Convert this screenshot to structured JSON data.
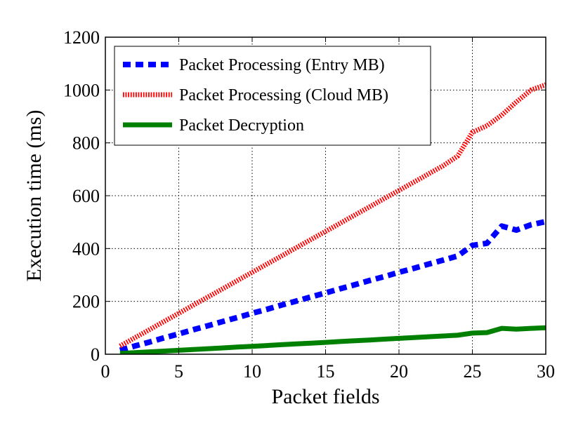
{
  "chart_data": {
    "type": "line",
    "title": "",
    "xlabel": "Packet fields",
    "ylabel": "Execution time (ms)",
    "xlim": [
      0,
      30
    ],
    "ylim": [
      0,
      1200
    ],
    "xticks": [
      "0",
      "5",
      "10",
      "15",
      "20",
      "25",
      "30"
    ],
    "yticks": [
      "0",
      "200",
      "400",
      "600",
      "800",
      "1000",
      "1200"
    ],
    "grid": true,
    "legend_position": "top-left",
    "series": [
      {
        "name": "Packet Processing (Entry MB)",
        "color": "#0000ff",
        "style": "dashed",
        "x": [
          1,
          2,
          3,
          4,
          5,
          6,
          7,
          8,
          9,
          10,
          11,
          12,
          13,
          14,
          15,
          16,
          17,
          18,
          19,
          20,
          21,
          22,
          23,
          24,
          25,
          26,
          27,
          28,
          29,
          30
        ],
        "y": [
          15,
          31,
          46,
          62,
          77,
          93,
          108,
          124,
          139,
          155,
          170,
          186,
          201,
          217,
          232,
          248,
          263,
          279,
          294,
          310,
          325,
          341,
          356,
          372,
          412,
          420,
          485,
          470,
          490,
          502
        ]
      },
      {
        "name": "Packet Processing (Cloud MB)",
        "color": "#ff0000",
        "style": "dotted",
        "x": [
          1,
          2,
          3,
          4,
          5,
          6,
          7,
          8,
          9,
          10,
          11,
          12,
          13,
          14,
          15,
          16,
          17,
          18,
          19,
          20,
          21,
          22,
          23,
          24,
          25,
          26,
          27,
          28,
          29,
          30
        ],
        "y": [
          31,
          62,
          93,
          124,
          155,
          186,
          217,
          248,
          279,
          310,
          341,
          372,
          403,
          434,
          465,
          496,
          527,
          558,
          589,
          620,
          651,
          682,
          713,
          750,
          840,
          865,
          905,
          955,
          1000,
          1020
        ]
      },
      {
        "name": "Packet Decryption",
        "color": "#008000",
        "style": "solid",
        "x": [
          1,
          2,
          3,
          4,
          5,
          6,
          7,
          8,
          9,
          10,
          11,
          12,
          13,
          14,
          15,
          16,
          17,
          18,
          19,
          20,
          21,
          22,
          23,
          24,
          25,
          26,
          27,
          28,
          29,
          30
        ],
        "y": [
          3,
          6,
          9,
          12,
          15,
          18,
          21,
          24,
          27,
          30,
          33,
          36,
          39,
          42,
          45,
          48,
          51,
          54,
          57,
          60,
          63,
          66,
          69,
          72,
          80,
          82,
          98,
          95,
          98,
          100
        ]
      }
    ]
  }
}
